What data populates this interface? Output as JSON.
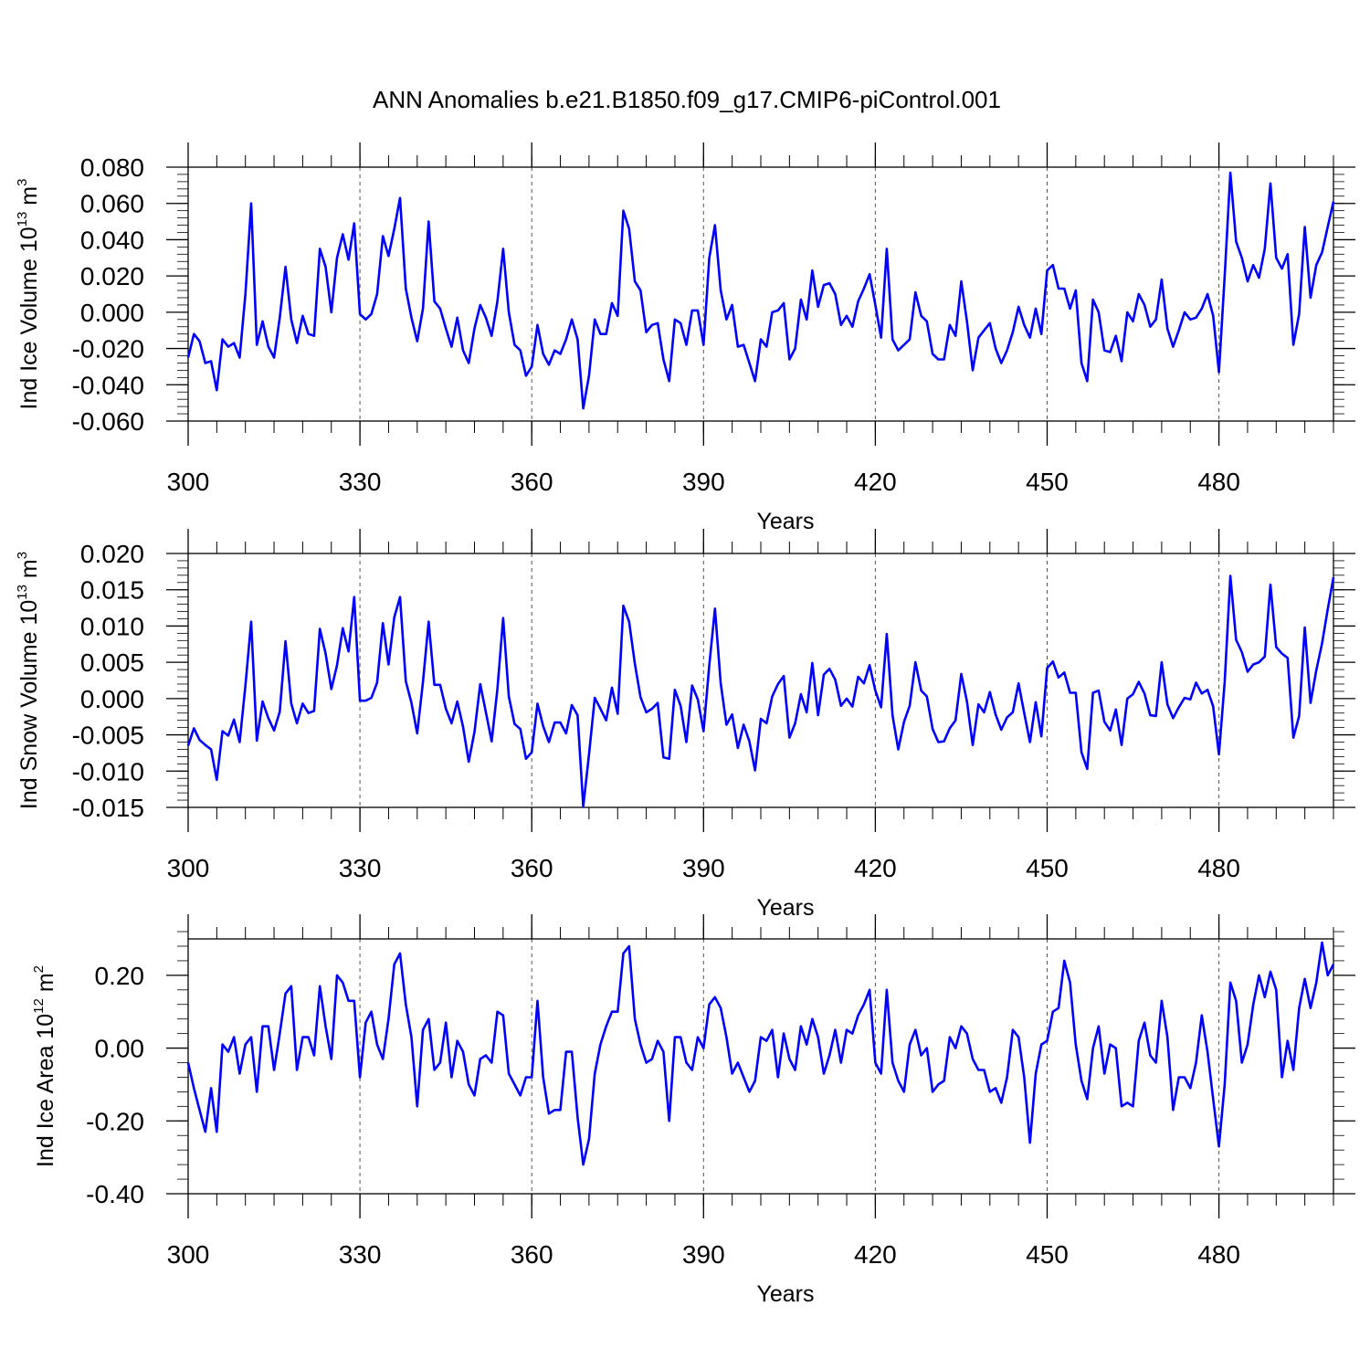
{
  "title": "ANN Anomalies b.e21.B1850.f09_g17.CMIP6-piControl.001",
  "chart_data": [
    {
      "type": "line",
      "title": "ANN Anomalies b.e21.B1850.f09_g17.CMIP6-piControl.001",
      "xlabel": "Years",
      "ylabel": "Ind Ice Volume 10",
      "ylabel_exp": "13",
      "ylabel_unit": " m",
      "ylabel_unit_exp": "3",
      "xlim": [
        300,
        500
      ],
      "ylim": [
        -0.06,
        0.08
      ],
      "xticks": [
        300,
        330,
        360,
        390,
        420,
        450,
        480
      ],
      "xtick_labels": [
        "300",
        "330",
        "360",
        "390",
        "420",
        "450",
        "480"
      ],
      "yticks": [
        -0.06,
        -0.04,
        -0.02,
        0.0,
        0.02,
        0.04,
        0.06,
        0.08
      ],
      "ytick_labels": [
        "-0.060",
        "-0.040",
        "-0.020",
        "0.000",
        "0.020",
        "0.040",
        "0.060",
        "0.080"
      ],
      "grid": "dashed vertical lines at year ticks",
      "line_color": "#0000ff",
      "x_start": 300,
      "x_step": 1,
      "y": [
        -0.025,
        -0.012,
        -0.016,
        -0.028,
        -0.027,
        -0.043,
        -0.015,
        -0.019,
        -0.017,
        -0.025,
        0.01,
        0.06,
        -0.018,
        -0.005,
        -0.019,
        -0.025,
        -0.003,
        0.025,
        -0.004,
        -0.017,
        -0.002,
        -0.012,
        -0.013,
        0.035,
        0.025,
        0.0,
        0.03,
        0.043,
        0.029,
        0.049,
        -0.001,
        -0.004,
        -0.001,
        0.01,
        0.042,
        0.031,
        0.046,
        0.063,
        0.013,
        -0.003,
        -0.016,
        0.002,
        0.05,
        0.006,
        0.002,
        -0.009,
        -0.019,
        -0.003,
        -0.021,
        -0.028,
        -0.009,
        0.004,
        -0.003,
        -0.013,
        0.006,
        0.035,
        0.0,
        -0.018,
        -0.021,
        -0.035,
        -0.03,
        -0.007,
        -0.023,
        -0.029,
        -0.021,
        -0.023,
        -0.015,
        -0.004,
        -0.015,
        -0.053,
        -0.035,
        -0.004,
        -0.012,
        -0.012,
        0.005,
        -0.002,
        0.056,
        0.046,
        0.017,
        0.012,
        -0.011,
        -0.007,
        -0.006,
        -0.026,
        -0.038,
        -0.004,
        -0.006,
        -0.018,
        0.001,
        0.001,
        -0.018,
        0.03,
        0.048,
        0.012,
        -0.004,
        0.004,
        -0.019,
        -0.018,
        -0.028,
        -0.038,
        -0.015,
        -0.019,
        0.0,
        0.001,
        0.005,
        -0.026,
        -0.02,
        0.007,
        -0.004,
        0.023,
        0.003,
        0.015,
        0.016,
        0.01,
        -0.007,
        -0.002,
        -0.008,
        0.006,
        0.013,
        0.021,
        0.004,
        -0.014,
        0.035,
        -0.015,
        -0.021,
        -0.018,
        -0.015,
        0.011,
        -0.002,
        -0.005,
        -0.023,
        -0.026,
        -0.026,
        -0.007,
        -0.013,
        0.017,
        -0.005,
        -0.032,
        -0.014,
        -0.01,
        -0.006,
        -0.02,
        -0.028,
        -0.021,
        -0.011,
        0.003,
        -0.007,
        -0.014,
        0.002,
        -0.012,
        0.023,
        0.026,
        0.013,
        0.013,
        0.002,
        0.012,
        -0.028,
        -0.038,
        0.007,
        0.0,
        -0.021,
        -0.022,
        -0.013,
        -0.027,
        0.0,
        -0.005,
        0.01,
        0.004,
        -0.008,
        -0.004,
        0.018,
        -0.009,
        -0.019,
        -0.01,
        0.0,
        -0.004,
        -0.003,
        0.002,
        0.01,
        -0.002,
        -0.033,
        0.02,
        0.077,
        0.039,
        0.03,
        0.017,
        0.026,
        0.019,
        0.035,
        0.071,
        0.03,
        0.024,
        0.032,
        -0.018,
        -0.001,
        0.047,
        0.008,
        0.026,
        0.033,
        0.047,
        0.061
      ]
    },
    {
      "type": "line",
      "xlabel": "Years",
      "ylabel": "Ind Snow Volume 10",
      "ylabel_exp": "13",
      "ylabel_unit": " m",
      "ylabel_unit_exp": "3",
      "xlim": [
        300,
        500
      ],
      "ylim": [
        -0.015,
        0.02
      ],
      "xticks": [
        300,
        330,
        360,
        390,
        420,
        450,
        480
      ],
      "xtick_labels": [
        "300",
        "330",
        "360",
        "390",
        "420",
        "450",
        "480"
      ],
      "yticks": [
        -0.015,
        -0.01,
        -0.005,
        0.0,
        0.005,
        0.01,
        0.015,
        0.02
      ],
      "ytick_labels": [
        "-0.015",
        "-0.010",
        "-0.005",
        "0.000",
        "0.005",
        "0.010",
        "0.015",
        "0.020"
      ],
      "grid": "dashed vertical lines at year ticks",
      "line_color": "#0000ff",
      "x_start": 300,
      "x_step": 1,
      "y": [
        -0.0065,
        -0.0041,
        -0.0057,
        -0.0064,
        -0.007,
        -0.0112,
        -0.0045,
        -0.0051,
        -0.0029,
        -0.006,
        0.0018,
        0.0106,
        -0.0058,
        -0.0004,
        -0.0027,
        -0.0044,
        -0.0018,
        0.0079,
        -0.0007,
        -0.0034,
        -0.0007,
        -0.002,
        -0.0017,
        0.0096,
        0.0062,
        0.0013,
        0.0046,
        0.0097,
        0.0065,
        0.014,
        -0.0003,
        -0.0003,
        0.0001,
        0.0022,
        0.0104,
        0.0047,
        0.0112,
        0.014,
        0.0024,
        -0.0006,
        -0.0048,
        0.0023,
        0.0106,
        0.0019,
        0.0019,
        -0.0014,
        -0.0034,
        -0.0004,
        -0.0039,
        -0.0087,
        -0.0046,
        0.002,
        -0.0019,
        -0.0059,
        0.0013,
        0.0111,
        0.0003,
        -0.0035,
        -0.0042,
        -0.0083,
        -0.0074,
        -0.0007,
        -0.0038,
        -0.006,
        -0.0033,
        -0.0033,
        -0.0048,
        -0.0009,
        -0.0023,
        -0.0149,
        -0.0077,
        0.0001,
        -0.0014,
        -0.003,
        0.0015,
        -0.0021,
        0.0128,
        0.0106,
        0.0048,
        0.0002,
        -0.0019,
        -0.0014,
        -0.0006,
        -0.0081,
        -0.0083,
        0.0012,
        -0.001,
        -0.006,
        0.0018,
        -0.0001,
        -0.0045,
        0.0046,
        0.0124,
        0.0021,
        -0.0036,
        -0.0022,
        -0.0068,
        -0.0036,
        -0.0059,
        -0.0099,
        -0.0028,
        -0.0034,
        0.0003,
        0.002,
        0.0031,
        -0.0054,
        -0.0034,
        0.0006,
        -0.0019,
        0.0049,
        -0.0023,
        0.0033,
        0.0041,
        0.0026,
        -0.001,
        0.0,
        -0.0011,
        0.003,
        0.0021,
        0.0046,
        0.0011,
        -0.0012,
        0.0089,
        -0.0023,
        -0.007,
        -0.0032,
        -0.001,
        0.005,
        0.0011,
        0.0003,
        -0.0042,
        -0.006,
        -0.0059,
        -0.0041,
        -0.003,
        0.0034,
        -0.0004,
        -0.0064,
        -0.0008,
        -0.0019,
        0.0009,
        -0.0022,
        -0.0043,
        -0.0026,
        -0.0019,
        0.0021,
        -0.002,
        -0.006,
        -0.0005,
        -0.0052,
        0.0042,
        0.0051,
        0.0029,
        0.0036,
        0.0008,
        0.0008,
        -0.0074,
        -0.0097,
        0.0008,
        0.0011,
        -0.0032,
        -0.0044,
        -0.0015,
        -0.0064,
        0.0,
        0.0006,
        0.0023,
        0.0007,
        -0.0023,
        -0.0024,
        0.005,
        -0.0008,
        -0.0027,
        -0.0012,
        0.0001,
        -0.0001,
        0.0022,
        0.0007,
        0.0012,
        -0.0011,
        -0.0077,
        0.0023,
        0.0169,
        0.0081,
        0.0064,
        0.0037,
        0.0047,
        0.005,
        0.0058,
        0.0157,
        0.0071,
        0.0062,
        0.0056,
        -0.0054,
        -0.0024,
        0.0098,
        -0.0006,
        0.0039,
        0.0076,
        0.0123,
        0.0167
      ]
    },
    {
      "type": "line",
      "xlabel": "Years",
      "ylabel": "Ind Ice Area 10",
      "ylabel_exp": "12",
      "ylabel_unit": " m",
      "ylabel_unit_exp": "2",
      "xlim": [
        300,
        500
      ],
      "ylim": [
        -0.4,
        0.3
      ],
      "xticks": [
        300,
        330,
        360,
        390,
        420,
        450,
        480
      ],
      "xtick_labels": [
        "300",
        "330",
        "360",
        "390",
        "420",
        "450",
        "480"
      ],
      "yticks": [
        -0.4,
        -0.2,
        0.0,
        0.2
      ],
      "ytick_labels": [
        "-0.40",
        "-0.20",
        "0.00",
        "0.20"
      ],
      "grid": "dashed vertical lines at year ticks",
      "line_color": "#0000ff",
      "x_start": 300,
      "x_step": 1,
      "y": [
        -0.04,
        -0.11,
        -0.17,
        -0.23,
        -0.11,
        -0.23,
        0.01,
        -0.01,
        0.03,
        -0.07,
        0.01,
        0.03,
        -0.12,
        0.06,
        0.06,
        -0.06,
        0.04,
        0.15,
        0.17,
        -0.06,
        0.03,
        0.03,
        -0.02,
        0.17,
        0.06,
        -0.03,
        0.2,
        0.18,
        0.13,
        0.13,
        -0.08,
        0.07,
        0.1,
        0.01,
        -0.03,
        0.08,
        0.23,
        0.26,
        0.12,
        0.03,
        -0.16,
        0.05,
        0.08,
        -0.06,
        -0.04,
        0.07,
        -0.08,
        0.02,
        -0.01,
        -0.1,
        -0.13,
        -0.03,
        -0.02,
        -0.04,
        0.1,
        0.09,
        -0.07,
        -0.1,
        -0.13,
        -0.08,
        -0.08,
        0.13,
        -0.08,
        -0.18,
        -0.17,
        -0.17,
        -0.01,
        -0.01,
        -0.19,
        -0.32,
        -0.25,
        -0.07,
        0.01,
        0.06,
        0.1,
        0.1,
        0.26,
        0.28,
        0.08,
        0.01,
        -0.04,
        -0.03,
        0.02,
        -0.01,
        -0.2,
        0.03,
        0.03,
        -0.04,
        -0.06,
        0.03,
        0.0,
        0.12,
        0.14,
        0.11,
        0.03,
        -0.07,
        -0.04,
        -0.08,
        -0.12,
        -0.09,
        0.03,
        0.02,
        0.05,
        -0.08,
        0.04,
        -0.03,
        -0.06,
        0.06,
        0.01,
        0.08,
        0.03,
        -0.07,
        -0.02,
        0.05,
        -0.04,
        0.05,
        0.04,
        0.09,
        0.12,
        0.16,
        -0.04,
        -0.07,
        0.16,
        -0.04,
        -0.09,
        -0.12,
        0.01,
        0.05,
        -0.02,
        0.0,
        -0.12,
        -0.1,
        -0.09,
        0.03,
        0.0,
        0.06,
        0.04,
        -0.03,
        -0.06,
        -0.06,
        -0.12,
        -0.11,
        -0.15,
        -0.08,
        0.05,
        0.03,
        -0.08,
        -0.26,
        -0.07,
        0.01,
        0.02,
        0.1,
        0.11,
        0.24,
        0.18,
        0.01,
        -0.09,
        -0.14,
        0.0,
        0.06,
        -0.07,
        0.01,
        0.0,
        -0.16,
        -0.15,
        -0.16,
        0.02,
        0.07,
        -0.02,
        -0.04,
        0.13,
        0.03,
        -0.17,
        -0.08,
        -0.08,
        -0.11,
        -0.04,
        0.09,
        -0.01,
        -0.14,
        -0.27,
        -0.1,
        0.18,
        0.13,
        -0.04,
        0.01,
        0.12,
        0.2,
        0.14,
        0.21,
        0.16,
        -0.08,
        0.02,
        -0.06,
        0.11,
        0.19,
        0.11,
        0.18,
        0.29,
        0.2,
        0.23
      ]
    }
  ]
}
